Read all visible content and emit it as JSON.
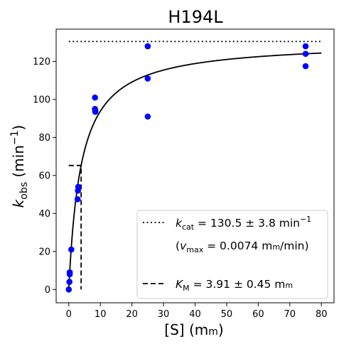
{
  "chart_data": {
    "type": "scatter",
    "title": "H194L",
    "xlabel": {
      "main": "[S] (m",
      "unit_sc": "m",
      "close": ")"
    },
    "ylabel": {
      "k": "k",
      "sub": "obs",
      "rest": " (min",
      "sup": "−1",
      "close": ")"
    },
    "xlim": [
      -4,
      84
    ],
    "ylim": [
      -7,
      137
    ],
    "xticks": [
      0,
      10,
      20,
      30,
      40,
      50,
      60,
      70,
      80
    ],
    "yticks": [
      0,
      20,
      40,
      60,
      80,
      100,
      120
    ],
    "grid": false,
    "points_color": "#0000ff",
    "curve_color": "#000000",
    "series": [
      {
        "kind": "points",
        "x": [
          0,
          0.2,
          0.3,
          0.3,
          0.8,
          2.8,
          2.9,
          3.0,
          8.3,
          8.3,
          8.4,
          8.4,
          25,
          25,
          25,
          75,
          75,
          75
        ],
        "y": [
          0,
          4,
          9,
          8,
          21,
          47.5,
          52,
          54,
          101,
          95,
          94,
          93.5,
          128,
          111,
          91,
          128,
          124,
          117.5
        ]
      },
      {
        "kind": "fit",
        "equation": "kobs = kcat*S/(KM+S)",
        "kcat": 130.5,
        "KM": 3.91,
        "x_range": [
          0,
          80
        ]
      },
      {
        "kind": "kcat_line",
        "y": 130.5,
        "x_range": [
          0,
          80
        ]
      },
      {
        "kind": "km_line",
        "x": 3.91,
        "y_half": 65.25,
        "x_start": 0
      }
    ],
    "legend": {
      "position": "lower-right",
      "entries": [
        {
          "style": "dotted",
          "k": "k",
          "sub": "cat",
          "value": " = 130.5 ± 3.8 min",
          "sup": "−1"
        },
        {
          "style": "none",
          "open": "(",
          "v": "v",
          "sub": "max",
          "value": " = 0.0074 m",
          "unit_sc": "m",
          "tail": "/min)"
        },
        {
          "style": "dashed",
          "k": "K",
          "sub": "M",
          "value": " = 3.91 ± 0.45 m",
          "unit_sc": "m"
        }
      ]
    }
  }
}
